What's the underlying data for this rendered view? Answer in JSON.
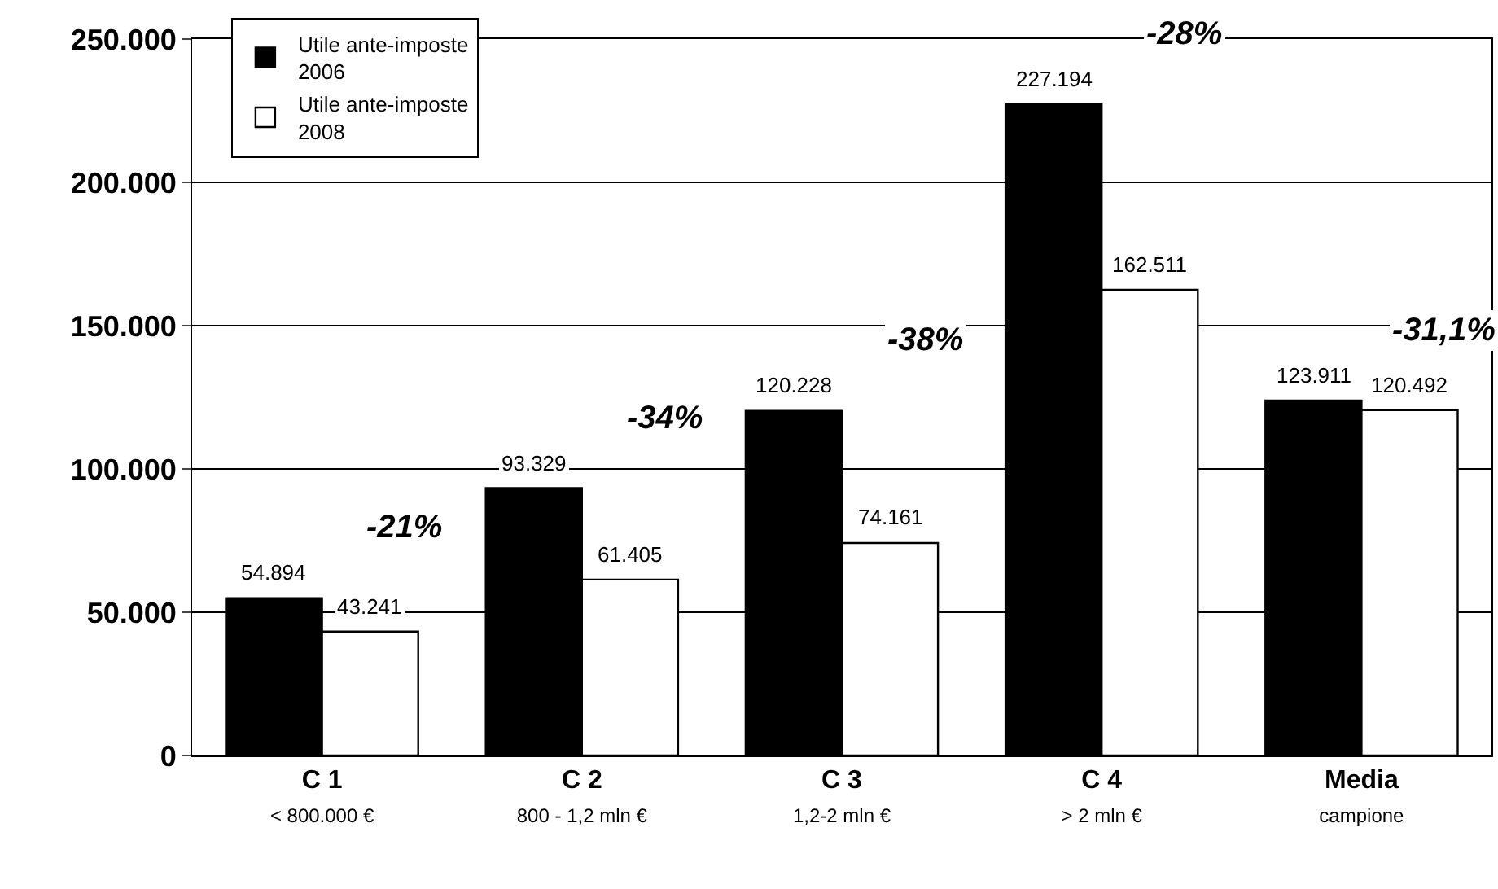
{
  "chart_data": {
    "type": "bar",
    "categories": [
      "C 1\n< 800.000 €",
      "C 2\n800 - 1,2 mln €",
      "C 3\n1,2-2 mln €",
      "C 4\n> 2 mln €",
      "Media\ncampione"
    ],
    "series": [
      {
        "name": "Utile ante-imposte\n2006",
        "color": "#000000",
        "values": [
          54894,
          93329,
          120228,
          227194,
          123911
        ],
        "value_labels": [
          "54.894",
          "93.329",
          "120.228",
          "227.194",
          "123.911"
        ]
      },
      {
        "name": "Utile ante-imposte\n2008",
        "color": "#ffffff",
        "values": [
          43241,
          61405,
          74161,
          162511,
          120492
        ],
        "value_labels": [
          "43.241",
          "61.405",
          "74.161",
          "162.511",
          "120.492"
        ]
      }
    ],
    "ylim": [
      0,
      250000
    ],
    "yticks": [
      {
        "value": 0,
        "label": "0"
      },
      {
        "value": 50000,
        "label": "50.000"
      },
      {
        "value": 100000,
        "label": "100.000"
      },
      {
        "value": 150000,
        "label": "150.000"
      },
      {
        "value": 200000,
        "label": "200.000"
      },
      {
        "value": 250000,
        "label": "250.000"
      }
    ],
    "grid": "y",
    "legend": "top left",
    "annotations": [
      "-21%",
      "-34%",
      "-38%",
      "-28%",
      "-31,1%"
    ]
  }
}
